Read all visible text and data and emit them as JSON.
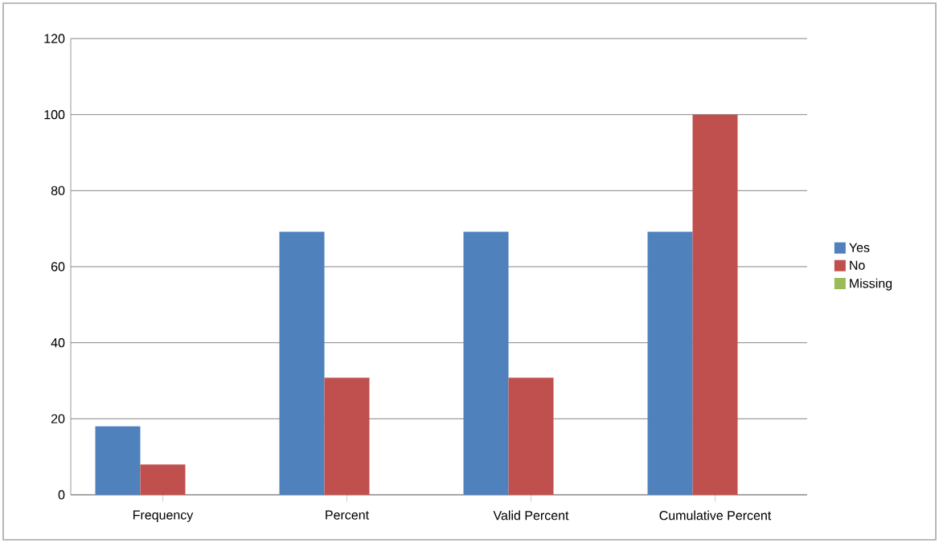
{
  "chart_data": {
    "type": "bar",
    "categories": [
      "Frequency",
      "Percent",
      "Valid Percent",
      "Cumulative Percent"
    ],
    "series": [
      {
        "name": "Yes",
        "color": "#4f81bd",
        "values": [
          18,
          69.2,
          69.2,
          69.2
        ]
      },
      {
        "name": "No",
        "color": "#c0504d",
        "values": [
          8,
          30.8,
          30.8,
          100
        ]
      },
      {
        "name": "Missing",
        "color": "#9bbb59",
        "values": [
          null,
          null,
          null,
          null
        ]
      }
    ],
    "ylim": [
      0,
      120
    ],
    "yticks": [
      0,
      20,
      40,
      60,
      80,
      100,
      120
    ],
    "grid": "y",
    "legend": "right"
  }
}
